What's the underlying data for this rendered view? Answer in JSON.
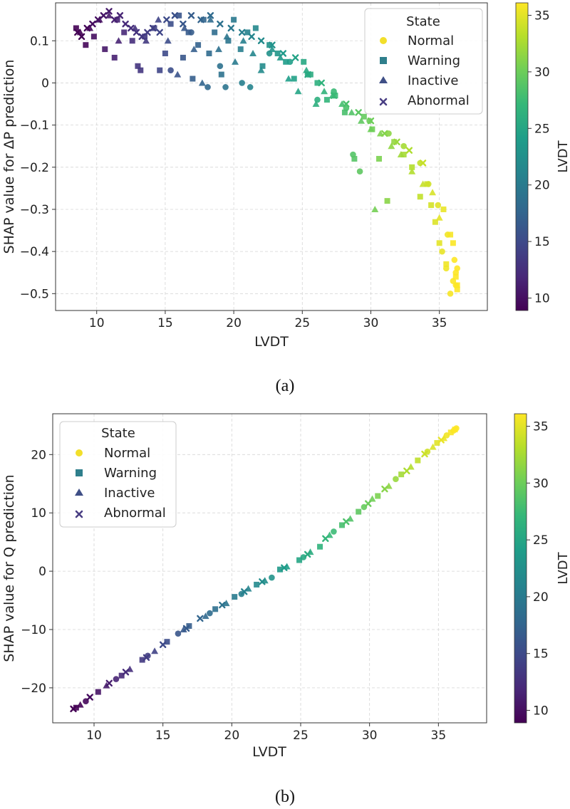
{
  "colors": {
    "viridis": [
      "#440154",
      "#482878",
      "#3e4989",
      "#31688e",
      "#26828e",
      "#1f9e89",
      "#35b779",
      "#6ece58",
      "#b5de2b",
      "#fde725"
    ],
    "axis": "#333333",
    "grid": "#d6d6d6",
    "legend_marker": "#3f4f86",
    "legend_normal": "#f2df2a",
    "legend_warning": "#2f7f8c"
  },
  "captions": {
    "a": "(a)",
    "b": "(b)"
  },
  "chart_data": [
    {
      "type": "scatter",
      "title": "",
      "xlabel": "LVDT",
      "ylabel": "SHAP value for ΔP prediction",
      "xlim": [
        7,
        38.5
      ],
      "ylim": [
        -0.54,
        0.19
      ],
      "xticks": [
        10,
        15,
        20,
        25,
        30,
        35
      ],
      "yticks": [
        0.1,
        0.0,
        -0.1,
        -0.2,
        -0.3,
        -0.4,
        -0.5
      ],
      "grid": true,
      "legend": {
        "title": "State",
        "placement": "top-right",
        "entries": [
          {
            "label": "Normal",
            "marker": "circle"
          },
          {
            "label": "Warning",
            "marker": "square"
          },
          {
            "label": "Inactive",
            "marker": "triangle"
          },
          {
            "label": "Abnormal",
            "marker": "x"
          }
        ]
      },
      "colorbar": {
        "label": "LVDT",
        "range": [
          8.9,
          36.1
        ],
        "ticks": [
          10,
          15,
          20,
          25,
          30,
          35
        ]
      },
      "series": [
        {
          "name": "Normal",
          "marker": "circle",
          "x": [
            15.4,
            16.9,
            18.1,
            19.0,
            19.4,
            20.6,
            21.2,
            22.6,
            24.1,
            25.4,
            26.1,
            27.3,
            28.2,
            28.7,
            29.2,
            29.9,
            31.3,
            32.4,
            33.6,
            34.2,
            34.9,
            35.2,
            35.5,
            35.6,
            35.8,
            36.0,
            36.1,
            36.2,
            36.2,
            36.3
          ],
          "y": [
            0.03,
            0.12,
            -0.01,
            0.04,
            -0.01,
            0.0,
            -0.01,
            0.07,
            0.05,
            0.02,
            -0.04,
            -0.02,
            -0.06,
            -0.17,
            -0.21,
            -0.09,
            -0.12,
            -0.15,
            -0.19,
            -0.24,
            -0.29,
            -0.4,
            -0.44,
            -0.36,
            -0.5,
            -0.47,
            -0.42,
            -0.45,
            -0.48,
            -0.44
          ]
        },
        {
          "name": "Warning",
          "marker": "square",
          "x": [
            8.5,
            9.2,
            9.8,
            10.6,
            11.3,
            11.5,
            12.0,
            12.6,
            13.0,
            13.2,
            13.5,
            14.2,
            14.6,
            15.0,
            15.4,
            16.0,
            16.3,
            16.7,
            17.0,
            17.4,
            17.8,
            18.2,
            18.6,
            19.1,
            19.6,
            20.0,
            20.5,
            21.0,
            21.6,
            22.1,
            22.6,
            23.2,
            23.8,
            24.4,
            25.1,
            25.6,
            26.1,
            26.8,
            27.4,
            28.1,
            28.8,
            29.5,
            30.1,
            30.6,
            31.2,
            31.7,
            32.4,
            33.0,
            33.6,
            34.1,
            34.4,
            34.7,
            35.0,
            35.3,
            35.5,
            35.8,
            36.0,
            36.2,
            36.3,
            36.3
          ],
          "y": [
            0.13,
            0.09,
            0.11,
            0.08,
            0.06,
            0.15,
            0.12,
            0.1,
            0.04,
            0.03,
            0.11,
            0.13,
            0.03,
            0.07,
            0.14,
            0.16,
            0.06,
            0.12,
            0.01,
            0.09,
            0.15,
            0.07,
            0.12,
            0.02,
            0.1,
            0.15,
            0.08,
            0.12,
            0.13,
            0.04,
            0.09,
            0.07,
            0.05,
            0.01,
            0.05,
            0.02,
            0.0,
            -0.04,
            -0.03,
            -0.07,
            -0.18,
            -0.08,
            -0.11,
            -0.18,
            -0.28,
            -0.14,
            -0.17,
            -0.2,
            -0.27,
            -0.24,
            -0.29,
            -0.33,
            -0.38,
            -0.3,
            -0.43,
            -0.36,
            -0.38,
            -0.46,
            -0.49,
            -0.48
          ]
        },
        {
          "name": "Inactive",
          "marker": "triangle",
          "x": [
            8.8,
            9.5,
            10.2,
            10.9,
            11.6,
            12.8,
            13.6,
            14.5,
            15.2,
            15.9,
            16.4,
            17.1,
            17.7,
            18.3,
            18.9,
            19.5,
            20.1,
            20.7,
            21.4,
            22.0,
            22.8,
            23.4,
            24.0,
            24.7,
            25.3,
            26.0,
            26.6,
            27.2,
            27.9,
            28.6,
            29.3,
            30.0,
            30.3,
            30.7,
            31.5,
            32.2,
            33.0,
            33.8,
            34.5,
            35.0
          ],
          "y": [
            0.12,
            0.13,
            0.15,
            0.16,
            0.1,
            0.13,
            0.1,
            0.15,
            0.1,
            0.02,
            0.13,
            0.08,
            0.0,
            0.15,
            0.08,
            0.11,
            0.05,
            0.1,
            0.07,
            0.03,
            0.08,
            0.06,
            0.01,
            -0.02,
            0.03,
            -0.05,
            -0.02,
            -0.03,
            -0.05,
            -0.07,
            -0.09,
            -0.11,
            -0.3,
            -0.12,
            -0.15,
            -0.17,
            -0.21,
            -0.24,
            -0.26,
            -0.32
          ]
        },
        {
          "name": "Abnormal",
          "marker": "x",
          "x": [
            8.6,
            8.9,
            9.3,
            9.7,
            10.1,
            10.5,
            10.9,
            11.3,
            11.7,
            12.1,
            12.5,
            12.9,
            13.3,
            13.7,
            14.1,
            14.6,
            15.1,
            15.7,
            16.3,
            16.9,
            17.6,
            18.3,
            19.0,
            19.8,
            20.6,
            21.3,
            22.0,
            22.8,
            23.6,
            24.5,
            25.4,
            26.4,
            27.3,
            28.2,
            29.1,
            30.0,
            31.0,
            31.9,
            32.8,
            33.8
          ],
          "y": [
            0.12,
            0.11,
            0.13,
            0.14,
            0.15,
            0.16,
            0.17,
            0.15,
            0.16,
            0.14,
            0.13,
            0.12,
            0.11,
            0.12,
            0.13,
            0.12,
            0.15,
            0.16,
            0.14,
            0.16,
            0.15,
            0.16,
            0.14,
            0.13,
            0.12,
            0.11,
            0.1,
            0.09,
            0.07,
            0.06,
            0.02,
            0.0,
            -0.03,
            -0.05,
            -0.07,
            -0.09,
            -0.12,
            -0.14,
            -0.16,
            -0.19
          ]
        }
      ]
    },
    {
      "type": "scatter",
      "title": "",
      "xlabel": "LVDT",
      "ylabel": "SHAP value for Q prediction",
      "xlim": [
        7,
        38.5
      ],
      "ylim": [
        -26,
        27
      ],
      "xticks": [
        10,
        15,
        20,
        25,
        30,
        35
      ],
      "yticks": [
        20,
        10,
        0,
        -10,
        -20
      ],
      "grid": true,
      "legend": {
        "title": "State",
        "placement": "top-left",
        "entries": [
          {
            "label": "Normal",
            "marker": "circle"
          },
          {
            "label": "Warning",
            "marker": "square"
          },
          {
            "label": "Inactive",
            "marker": "triangle"
          },
          {
            "label": "Abnormal",
            "marker": "x"
          }
        ]
      },
      "colorbar": {
        "label": "LVDT",
        "range": [
          8.9,
          36.1
        ],
        "ticks": [
          10,
          15,
          20,
          25,
          30,
          35
        ]
      },
      "series": [
        {
          "name": "Normal",
          "marker": "circle",
          "x": [
            9.4,
            11.6,
            13.9,
            16.1,
            18.4,
            20.7,
            22.9,
            25.2,
            27.4,
            29.6,
            31.9,
            34.2,
            35.6,
            36.1,
            36.3
          ],
          "y": [
            -22.3,
            -18.5,
            -14.5,
            -10.7,
            -7.2,
            -3.9,
            -1.1,
            2.4,
            6.8,
            11.0,
            15.8,
            20.5,
            23.3,
            24.1,
            24.5
          ]
        },
        {
          "name": "Warning",
          "marker": "square",
          "x": [
            8.7,
            10.3,
            12.0,
            13.5,
            15.3,
            16.9,
            18.8,
            20.2,
            21.8,
            23.5,
            24.9,
            26.4,
            28.0,
            29.2,
            30.6,
            32.3,
            33.5,
            34.9,
            35.9,
            36.2
          ],
          "y": [
            -23.4,
            -20.7,
            -17.9,
            -15.2,
            -12.1,
            -9.4,
            -6.5,
            -4.4,
            -2.3,
            0.3,
            1.9,
            4.2,
            7.9,
            10.2,
            12.9,
            16.6,
            19.0,
            22.0,
            23.8,
            24.3
          ]
        },
        {
          "name": "Inactive",
          "marker": "triangle",
          "x": [
            9.0,
            10.9,
            12.6,
            14.4,
            16.5,
            18.1,
            19.6,
            21.2,
            22.4,
            24.0,
            25.7,
            27.1,
            28.6,
            30.2,
            31.4,
            33.0,
            34.6,
            35.4
          ],
          "y": [
            -22.9,
            -19.6,
            -16.8,
            -13.7,
            -10.0,
            -7.7,
            -5.5,
            -3.0,
            -1.6,
            0.8,
            3.3,
            6.2,
            9.0,
            12.4,
            14.6,
            17.9,
            21.3,
            22.8
          ]
        },
        {
          "name": "Abnormal",
          "marker": "x",
          "x": [
            8.5,
            9.7,
            11.1,
            12.3,
            13.8,
            15.0,
            16.7,
            17.7,
            19.3,
            20.9,
            22.2,
            23.8,
            25.5,
            26.8,
            28.3,
            29.9,
            31.1,
            32.7,
            34.0,
            35.2
          ],
          "y": [
            -23.6,
            -21.6,
            -19.2,
            -17.3,
            -14.8,
            -12.6,
            -9.8,
            -8.1,
            -5.8,
            -3.5,
            -1.8,
            0.6,
            2.9,
            5.6,
            8.5,
            11.6,
            14.1,
            17.2,
            20.1,
            22.5
          ]
        }
      ]
    }
  ]
}
